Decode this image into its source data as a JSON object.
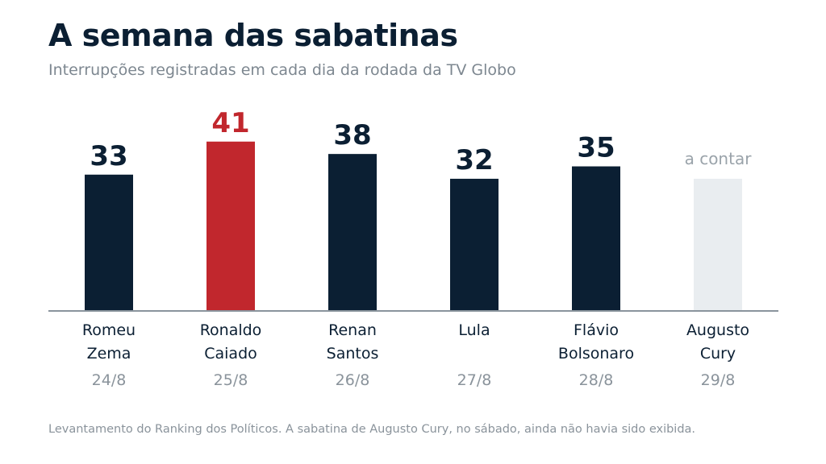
{
  "chart_data": {
    "type": "bar",
    "title": "A semana das sabatinas",
    "subtitle": "Interrupções registradas em cada dia da rodada da TV Globo",
    "categories": [
      {
        "name_lines": [
          "Romeu",
          "Zema"
        ],
        "date": "24/8",
        "value": 33,
        "value_label": "33",
        "status": "done"
      },
      {
        "name_lines": [
          "Ronaldo",
          "Caiado"
        ],
        "date": "25/8",
        "value": 41,
        "value_label": "41",
        "status": "highlight"
      },
      {
        "name_lines": [
          "Renan",
          "Santos"
        ],
        "date": "26/8",
        "value": 38,
        "value_label": "38",
        "status": "done"
      },
      {
        "name_lines": [
          "Lula"
        ],
        "date": "27/8",
        "value": 32,
        "value_label": "32",
        "status": "done"
      },
      {
        "name_lines": [
          "Flávio",
          "Bolsonaro"
        ],
        "date": "28/8",
        "value": 35,
        "value_label": "35",
        "status": "done"
      },
      {
        "name_lines": [
          "Augusto",
          "Cury"
        ],
        "date": "29/8",
        "value": 32,
        "value_label": "a contar",
        "status": "pending"
      }
    ],
    "ylim": [
      0,
      47
    ],
    "grid": false,
    "legend": "none",
    "colors": {
      "done": "#0b1f33",
      "highlight": "#c1272d",
      "pending": "#e9edf0",
      "axis": "#8a949d"
    },
    "note": "Levantamento do Ranking dos Políticos. A sabatina de Augusto Cury, no sábado, ainda não havia sido exibida."
  }
}
